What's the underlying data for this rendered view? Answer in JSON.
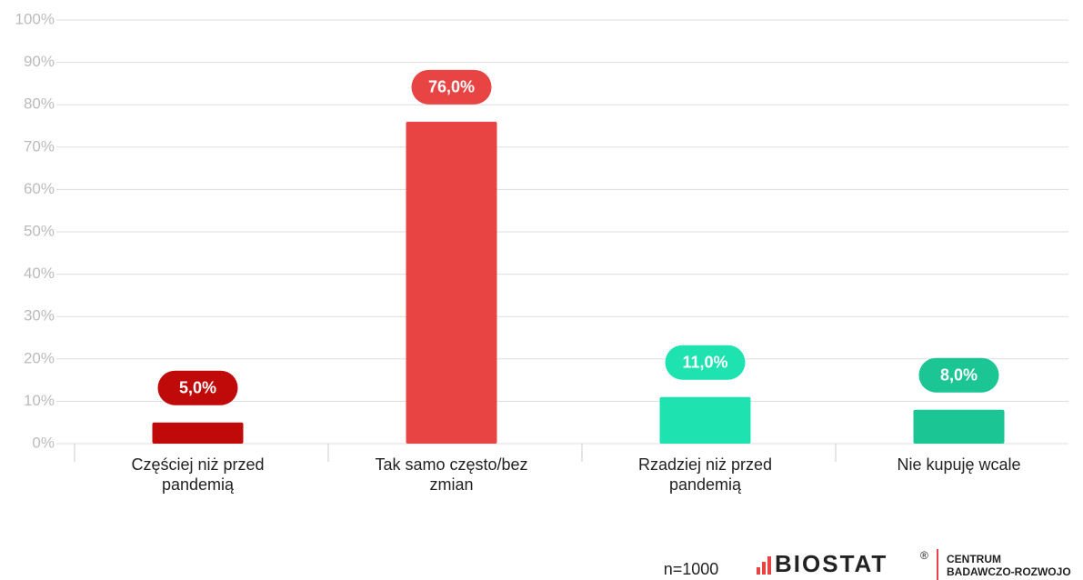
{
  "chart_data": {
    "type": "bar",
    "categories": [
      "Częściej niż przed pandemią",
      "Tak samo często/bez zmian",
      "Rzadziej niż przed pandemią",
      "Nie kupuję wcale"
    ],
    "values": [
      5.0,
      76.0,
      11.0,
      8.0
    ],
    "value_labels": [
      "5,0%",
      "76,0%",
      "11,0%",
      "8,0%"
    ],
    "colors": [
      "#c00a0a",
      "#e84444",
      "#1ee3b0",
      "#1cc594"
    ],
    "ylim": [
      0,
      100
    ],
    "yticks": [
      {
        "value": 0,
        "label": "0%"
      },
      {
        "value": 10,
        "label": "10%"
      },
      {
        "value": 20,
        "label": "20%"
      },
      {
        "value": 30,
        "label": "30%"
      },
      {
        "value": 40,
        "label": "40%"
      },
      {
        "value": 50,
        "label": "50%"
      },
      {
        "value": 60,
        "label": "60%"
      },
      {
        "value": 70,
        "label": "70%"
      },
      {
        "value": 80,
        "label": "80%"
      },
      {
        "value": 90,
        "label": "90%"
      },
      {
        "value": 100,
        "label": "100%"
      }
    ],
    "grid": true
  },
  "footer": {
    "sample": "n=1000",
    "logo": "BIOSTAT",
    "registered": "®",
    "center_line1": "CENTRUM",
    "center_line2": "BADAWCZO-ROZWOJO"
  }
}
